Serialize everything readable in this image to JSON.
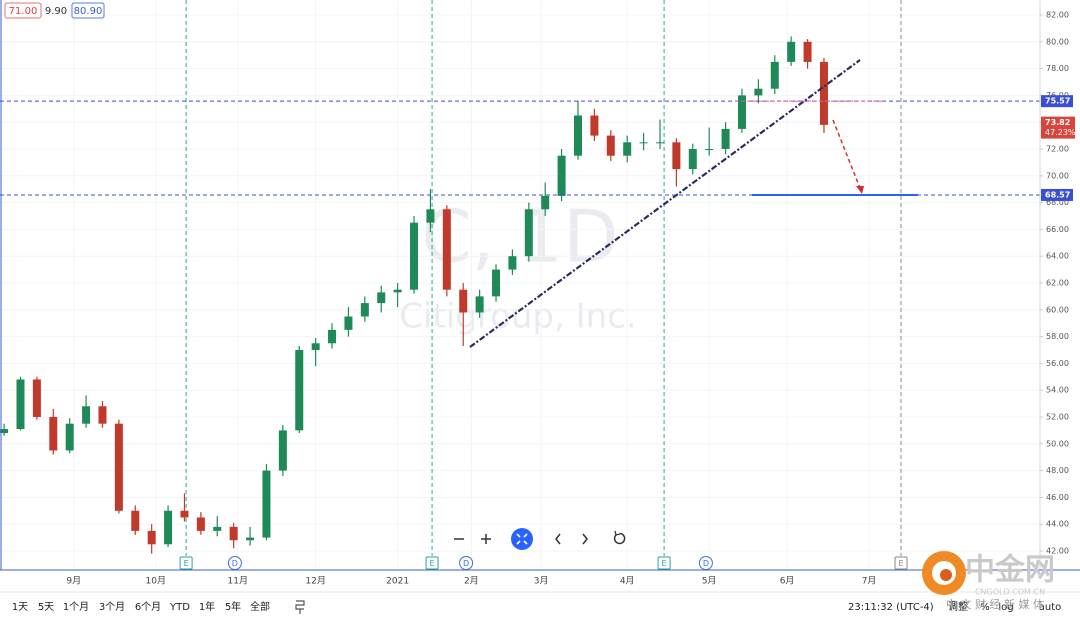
{
  "header_values": [
    "71.00",
    "9.90",
    "80.90"
  ],
  "chart_data": {
    "type": "candlestick",
    "watermark": {
      "symbol": "C, 1D",
      "name": "Citigroup, Inc."
    },
    "x": [
      0,
      4,
      8,
      12,
      16,
      20,
      24,
      28,
      32,
      36,
      40,
      44,
      48,
      52,
      56,
      60,
      64,
      68,
      72,
      76,
      80,
      84,
      88,
      92,
      96,
      100,
      104,
      108,
      112,
      116,
      120,
      124,
      128,
      132,
      136,
      140,
      144,
      148,
      152,
      156,
      160,
      164,
      168,
      172,
      176,
      180,
      184,
      188,
      192,
      196,
      200
    ],
    "open": [
      50.8,
      51.1,
      54.8,
      52.0,
      49.5,
      51.5,
      52.8,
      51.5,
      45.0,
      43.5,
      42.5,
      45.0,
      44.5,
      43.5,
      43.8,
      42.8,
      43.0,
      48.0,
      51.0,
      57.0,
      57.5,
      58.5,
      59.5,
      60.5,
      61.3,
      61.5,
      66.5,
      67.5,
      61.5,
      59.8,
      61.0,
      63.0,
      64.0,
      67.5,
      68.5,
      71.5,
      74.5,
      73.0,
      71.5,
      72.5,
      72.5,
      72.5,
      70.5,
      72.0,
      72.0,
      73.5,
      76.0,
      76.5,
      78.5,
      80.0,
      78.5
    ],
    "high": [
      51.5,
      55.0,
      55.0,
      52.6,
      51.9,
      53.6,
      53.2,
      51.8,
      45.4,
      44.0,
      45.4,
      46.3,
      44.9,
      44.6,
      44.1,
      43.8,
      48.5,
      51.4,
      57.3,
      57.9,
      59.0,
      60.2,
      61.0,
      61.8,
      62.0,
      67.0,
      69.0,
      67.8,
      62.0,
      61.5,
      63.4,
      64.5,
      68.0,
      69.5,
      72.0,
      75.6,
      75.0,
      73.4,
      73.0,
      73.2,
      74.2,
      72.8,
      72.4,
      73.6,
      74.0,
      76.5,
      77.2,
      79.0,
      80.4,
      80.2,
      78.8
    ],
    "low": [
      50.6,
      51.0,
      51.8,
      49.2,
      49.3,
      51.2,
      51.2,
      44.8,
      43.2,
      41.8,
      42.3,
      44.2,
      43.2,
      43.1,
      42.2,
      42.4,
      42.8,
      47.6,
      50.8,
      55.8,
      57.1,
      58.0,
      59.1,
      59.8,
      60.2,
      61.2,
      65.8,
      61.0,
      57.3,
      59.4,
      60.6,
      62.6,
      63.6,
      67.0,
      68.1,
      71.2,
      72.6,
      71.1,
      71.0,
      71.9,
      72.0,
      69.2,
      70.1,
      71.5,
      71.6,
      73.2,
      75.4,
      76.1,
      78.2,
      78.0,
      73.2
    ],
    "close": [
      51.1,
      54.8,
      52.0,
      49.5,
      51.5,
      52.8,
      51.5,
      45.0,
      43.5,
      42.5,
      45.0,
      44.5,
      43.5,
      43.8,
      42.8,
      43.0,
      48.0,
      51.0,
      57.0,
      57.5,
      58.5,
      59.5,
      60.5,
      61.3,
      61.5,
      66.5,
      67.5,
      61.5,
      59.8,
      61.0,
      63.0,
      64.0,
      67.5,
      68.5,
      71.5,
      74.5,
      73.0,
      71.5,
      72.5,
      72.5,
      72.5,
      70.5,
      72.0,
      72.0,
      73.5,
      76.0,
      76.5,
      78.5,
      80.0,
      78.5,
      73.8
    ],
    "up_color": "#1f8a57",
    "down_color": "#c0392b",
    "xlim": [
      -1,
      252.7
    ],
    "xticks": [
      {
        "value": 17,
        "label": "9月"
      },
      {
        "value": 37,
        "label": "10月"
      },
      {
        "value": 57,
        "label": "11月"
      },
      {
        "value": 76,
        "label": "12月"
      },
      {
        "value": 96,
        "label": "2021"
      },
      {
        "value": 114,
        "label": "2月"
      },
      {
        "value": 131,
        "label": "3月"
      },
      {
        "value": 152,
        "label": "4月"
      },
      {
        "value": 172,
        "label": "5月"
      },
      {
        "value": 191,
        "label": "6月"
      },
      {
        "value": 211,
        "label": "7月"
      }
    ],
    "ylim": [
      40.58,
      83.12
    ],
    "yticks": [
      {
        "value": 42,
        "label": "42.00"
      },
      {
        "value": 44,
        "label": "44.00"
      },
      {
        "value": 46,
        "label": "46.00"
      },
      {
        "value": 48,
        "label": "48.00"
      },
      {
        "value": 50,
        "label": "50.00"
      },
      {
        "value": 52,
        "label": "52.00"
      },
      {
        "value": 54,
        "label": "54.00"
      },
      {
        "value": 56,
        "label": "56.00"
      },
      {
        "value": 58,
        "label": "58.00"
      },
      {
        "value": 60,
        "label": "60.00"
      },
      {
        "value": 62,
        "label": "62.00"
      },
      {
        "value": 64,
        "label": "64.00"
      },
      {
        "value": 66,
        "label": "66.00"
      },
      {
        "value": 68,
        "label": "68.00"
      },
      {
        "value": 70,
        "label": "70.00"
      },
      {
        "value": 72,
        "label": "72.00"
      },
      {
        "value": 74,
        "label": "74.00"
      },
      {
        "value": 76,
        "label": "76.00"
      },
      {
        "value": 78,
        "label": "78.00"
      },
      {
        "value": 80,
        "label": "80.00"
      },
      {
        "value": 82,
        "label": "82.00"
      }
    ],
    "levels": [
      {
        "value": 75.57,
        "color": "#3b4fd6"
      },
      {
        "value": 68.57,
        "color": "#3b4fd6"
      }
    ],
    "last_price": {
      "value": 73.82,
      "change": "47.23%",
      "color": "#d9453b"
    },
    "events": [
      {
        "label": "E",
        "x": 44.4,
        "color": "#26a69a",
        "shape": "square"
      },
      {
        "label": "D",
        "x": 56.3,
        "color": "#3d6fe0",
        "shape": "circle"
      },
      {
        "label": "E",
        "x": 104.4,
        "color": "#26a69a",
        "shape": "square"
      },
      {
        "label": "D",
        "x": 112.7,
        "color": "#3d6fe0",
        "shape": "circle"
      },
      {
        "label": "E",
        "x": 161,
        "color": "#26a69a",
        "shape": "square"
      },
      {
        "label": "D",
        "x": 171.2,
        "color": "#3d6fe0",
        "shape": "circle"
      },
      {
        "label": "E",
        "x": 218.8,
        "color": "#888888",
        "shape": "square"
      }
    ]
  },
  "toolbar": {
    "ranges": [
      "1天",
      "5天",
      "1个月",
      "3个月",
      "6个月",
      "YTD",
      "1年",
      "5年",
      "全部"
    ],
    "time": "23:11:32 (UTC-4)",
    "options": [
      "调整",
      "%",
      "log",
      "auto"
    ]
  },
  "logo": {
    "name": "中金网",
    "domain": "CNGOLD.COM.CN",
    "tagline": "中 文 财 经 新 媒 体"
  }
}
